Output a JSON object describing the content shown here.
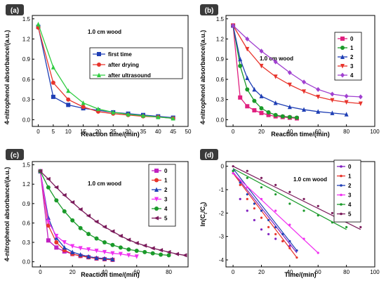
{
  "chart_data": [
    {
      "panel": "(a)",
      "type": "line",
      "xlabel": "Reaction time/(min)",
      "ylabel": "4-nitrophenol absorbance/(a.u.)",
      "annotation": "1.0 cm wood",
      "xlim": [
        -2,
        50
      ],
      "ylim": [
        -0.1,
        1.55
      ],
      "xticks": [
        0,
        5,
        10,
        15,
        20,
        25,
        30,
        35,
        40,
        45,
        50
      ],
      "yticks": [
        0.0,
        0.3,
        0.6,
        0.9,
        1.2,
        1.5
      ],
      "legend": "center-right",
      "series": [
        {
          "name": "first time",
          "color": "#1f3fb5",
          "marker": "square",
          "x": [
            0,
            5,
            10,
            15,
            20,
            25,
            30,
            35,
            40,
            45
          ],
          "y": [
            1.38,
            0.34,
            0.22,
            0.17,
            0.14,
            0.11,
            0.09,
            0.07,
            0.05,
            0.03
          ]
        },
        {
          "name": "after drying",
          "color": "#e8342c",
          "marker": "circle",
          "x": [
            0,
            5,
            10,
            15,
            20,
            25,
            30,
            35,
            40,
            45
          ],
          "y": [
            1.37,
            0.55,
            0.3,
            0.19,
            0.12,
            0.09,
            0.07,
            0.05,
            0.04,
            0.02
          ]
        },
        {
          "name": "after ultrasound",
          "color": "#2ecc40",
          "marker": "triangle",
          "x": [
            0,
            5,
            10,
            15,
            20,
            25,
            30,
            35,
            40,
            45
          ],
          "y": [
            1.42,
            0.78,
            0.43,
            0.25,
            0.16,
            0.11,
            0.08,
            0.06,
            0.04,
            0.02
          ]
        }
      ]
    },
    {
      "panel": "(b)",
      "type": "line",
      "xlabel": "Reaction time/(min)",
      "ylabel": "4-nitrophenol absorbance/(a.u.)",
      "annotation": "1.0 cm wood",
      "xlim": [
        -5,
        100
      ],
      "ylim": [
        -0.1,
        1.55
      ],
      "xticks": [
        0,
        20,
        40,
        60,
        80,
        100
      ],
      "yticks": [
        0.0,
        0.3,
        0.6,
        0.9,
        1.2,
        1.5
      ],
      "legend": "top-right",
      "series": [
        {
          "name": "0",
          "color": "#e0207f",
          "marker": "square",
          "x": [
            0,
            5,
            10,
            15,
            20,
            25,
            30,
            35,
            40,
            45
          ],
          "y": [
            1.4,
            0.33,
            0.2,
            0.14,
            0.1,
            0.07,
            0.05,
            0.04,
            0.03,
            0.02
          ]
        },
        {
          "name": "1",
          "color": "#1a9a2a",
          "marker": "circle",
          "x": [
            0,
            5,
            10,
            15,
            20,
            25,
            30,
            35,
            40,
            45
          ],
          "y": [
            1.4,
            0.8,
            0.45,
            0.28,
            0.17,
            0.11,
            0.07,
            0.05,
            0.04,
            0.03
          ]
        },
        {
          "name": "2",
          "color": "#1f3fb5",
          "marker": "triangle",
          "x": [
            0,
            5,
            10,
            15,
            20,
            30,
            40,
            50,
            60,
            70,
            80
          ],
          "y": [
            1.4,
            0.9,
            0.62,
            0.45,
            0.35,
            0.25,
            0.19,
            0.15,
            0.12,
            0.1,
            0.08
          ]
        },
        {
          "name": "3",
          "color": "#e8342c",
          "marker": "triangle-down",
          "x": [
            0,
            10,
            20,
            30,
            40,
            50,
            60,
            70,
            80,
            90
          ],
          "y": [
            1.4,
            1.05,
            0.8,
            0.64,
            0.52,
            0.42,
            0.34,
            0.29,
            0.26,
            0.24
          ]
        },
        {
          "name": "4",
          "color": "#a040d0",
          "marker": "diamond",
          "x": [
            0,
            10,
            20,
            30,
            40,
            50,
            60,
            70,
            80,
            90
          ],
          "y": [
            1.4,
            1.2,
            1.02,
            0.86,
            0.7,
            0.56,
            0.45,
            0.38,
            0.35,
            0.34
          ]
        }
      ]
    },
    {
      "panel": "(c)",
      "type": "line",
      "xlabel": "Reaction time/(min)",
      "ylabel": "4-nitrophenol absorbance/(a.u.)",
      "annotation": "1.0 cm wood",
      "xlim": [
        -5,
        92
      ],
      "ylim": [
        -0.08,
        1.55
      ],
      "xticks": [
        0,
        20,
        40,
        60,
        80
      ],
      "yticks": [
        0.0,
        0.3,
        0.6,
        0.9,
        1.2,
        1.5
      ],
      "legend": "top-right",
      "series": [
        {
          "name": "0",
          "color": "#c020c0",
          "marker": "square",
          "x": [
            0,
            5,
            10,
            15,
            20,
            25,
            30,
            35,
            40,
            45
          ],
          "y": [
            1.4,
            0.33,
            0.22,
            0.16,
            0.12,
            0.09,
            0.07,
            0.05,
            0.04,
            0.03
          ]
        },
        {
          "name": "1",
          "color": "#e8342c",
          "marker": "circle",
          "x": [
            0,
            5,
            10,
            15,
            20,
            25,
            30,
            35,
            40,
            45
          ],
          "y": [
            1.4,
            0.56,
            0.3,
            0.18,
            0.12,
            0.09,
            0.07,
            0.05,
            0.04,
            0.03
          ]
        },
        {
          "name": "2",
          "color": "#1f3fb5",
          "marker": "triangle",
          "x": [
            0,
            5,
            10,
            15,
            20,
            25,
            30,
            35,
            40,
            45
          ],
          "y": [
            1.4,
            0.68,
            0.37,
            0.22,
            0.15,
            0.11,
            0.08,
            0.06,
            0.05,
            0.04
          ]
        },
        {
          "name": "3",
          "color": "#f030f0",
          "marker": "triangle-down",
          "x": [
            0,
            5,
            10,
            15,
            20,
            25,
            30,
            35,
            40,
            45,
            50,
            55,
            60
          ],
          "y": [
            1.4,
            0.62,
            0.4,
            0.3,
            0.24,
            0.21,
            0.19,
            0.17,
            0.15,
            0.13,
            0.12,
            0.1,
            0.08
          ]
        },
        {
          "name": "4",
          "color": "#1a9a2a",
          "marker": "circle",
          "x": [
            0,
            5,
            10,
            15,
            20,
            25,
            30,
            35,
            40,
            45,
            50,
            55,
            60,
            65,
            70,
            75,
            80
          ],
          "y": [
            1.4,
            1.15,
            0.95,
            0.78,
            0.64,
            0.52,
            0.43,
            0.36,
            0.3,
            0.26,
            0.22,
            0.19,
            0.17,
            0.15,
            0.13,
            0.11,
            0.1
          ]
        },
        {
          "name": "5",
          "color": "#7a1a5a",
          "marker": "triangle-left",
          "x": [
            0,
            5,
            10,
            15,
            20,
            25,
            30,
            35,
            40,
            45,
            50,
            55,
            60,
            65,
            70,
            75,
            80,
            85,
            90
          ],
          "y": [
            1.4,
            1.28,
            1.15,
            1.03,
            0.92,
            0.81,
            0.71,
            0.62,
            0.54,
            0.47,
            0.4,
            0.34,
            0.29,
            0.25,
            0.21,
            0.18,
            0.15,
            0.12,
            0.1
          ]
        }
      ]
    },
    {
      "panel": "(d)",
      "type": "scatter",
      "xlabel": "Time/(min)",
      "ylabel": "ln(C_t/C_0)",
      "annotation": "1.0 cm wood",
      "xlim": [
        -5,
        100
      ],
      "ylim": [
        -4.3,
        0.2
      ],
      "xticks": [
        0,
        20,
        40,
        60,
        80,
        100
      ],
      "yticks": [
        0,
        -1,
        -2,
        -3,
        -4
      ],
      "legend": "top-right",
      "series": [
        {
          "name": "0",
          "color": "#8020c0",
          "points_x": [
            0,
            5,
            10,
            15,
            20,
            25,
            30,
            35,
            40,
            45
          ],
          "points_y": [
            -0.2,
            -1.4,
            -1.9,
            -2.3,
            -2.7,
            -2.9,
            -3.1,
            -3.2,
            -3.4,
            -3.6
          ],
          "fit": [
            [
              0,
              -0.25
            ],
            [
              45,
              -3.7
            ]
          ]
        },
        {
          "name": "1",
          "color": "#e8342c",
          "points_x": [
            0,
            5,
            10,
            15,
            20,
            25,
            30,
            35,
            40,
            45
          ],
          "points_y": [
            -0.3,
            -0.8,
            -1.4,
            -1.8,
            -2.2,
            -2.6,
            -2.9,
            -3.2,
            -3.5,
            -3.9
          ],
          "fit": [
            [
              0,
              -0.3
            ],
            [
              45,
              -3.9
            ]
          ]
        },
        {
          "name": "2",
          "color": "#1f3fb5",
          "points_x": [
            0,
            5,
            10,
            15,
            20,
            25,
            30,
            35,
            40,
            45
          ],
          "points_y": [
            -0.2,
            -0.7,
            -1.2,
            -1.6,
            -1.9,
            -2.3,
            -2.6,
            -2.9,
            -3.2,
            -3.6
          ],
          "fit": [
            [
              0,
              -0.1
            ],
            [
              45,
              -3.6
            ]
          ]
        },
        {
          "name": "3",
          "color": "#f030f0",
          "points_x": [
            0,
            10,
            20,
            30,
            40,
            50,
            60
          ],
          "points_y": [
            -0.3,
            -0.9,
            -1.4,
            -1.9,
            -2.5,
            -3.1,
            -3.7
          ],
          "fit": [
            [
              0,
              -0.3
            ],
            [
              60,
              -3.7
            ]
          ]
        },
        {
          "name": "4",
          "color": "#1a9a2a",
          "points_x": [
            0,
            10,
            20,
            30,
            40,
            50,
            60,
            70,
            80
          ],
          "points_y": [
            -0.2,
            -0.5,
            -0.9,
            -1.2,
            -1.6,
            -1.9,
            -2.1,
            -2.4,
            -2.6
          ],
          "fit": [
            [
              0,
              -0.1
            ],
            [
              80,
              -2.7
            ]
          ]
        },
        {
          "name": "5",
          "color": "#7a1a5a",
          "points_x": [
            0,
            10,
            20,
            30,
            40,
            50,
            60,
            70,
            80,
            90
          ],
          "points_y": [
            0.0,
            -0.2,
            -0.5,
            -0.8,
            -1.1,
            -1.4,
            -1.7,
            -2.0,
            -2.3,
            -2.6
          ],
          "fit": [
            [
              0,
              0.0
            ],
            [
              90,
              -2.7
            ]
          ]
        }
      ]
    }
  ]
}
